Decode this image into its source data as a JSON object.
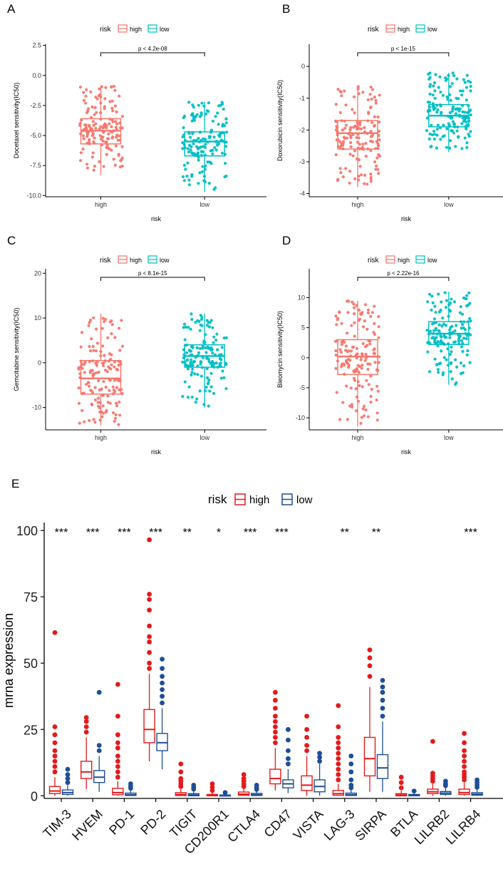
{
  "colors": {
    "high_panel": "#F8766D",
    "low_panel": "#00BFC4",
    "high_e": "#E41A1C",
    "low_e": "#1F4E96",
    "axis": "#000000"
  },
  "chart_data": [
    {
      "panel": "A",
      "type": "boxplot",
      "legend": {
        "title": "risk",
        "items": [
          "high",
          "low"
        ]
      },
      "ylabel": "Docetaxel sensitivity(IC50)",
      "xlabel": "risk",
      "ylim": [
        -10.1,
        2.6
      ],
      "yticks": [
        2.5,
        0.0,
        -2.5,
        -5.0,
        -7.5,
        -10.0
      ],
      "ytick_labels": [
        "2.5",
        "0.0",
        "-2.5",
        "-5.0",
        "-7.5",
        "-10.0"
      ],
      "categories": [
        "high",
        "low"
      ],
      "boxes": [
        {
          "group": "high",
          "min": -8.3,
          "q1": -5.7,
          "median": -4.6,
          "q3": -3.6,
          "max": -0.9
        },
        {
          "group": "low",
          "min": -9.7,
          "q1": -6.7,
          "median": -5.5,
          "q3": -4.7,
          "max": -2.2
        }
      ],
      "pvalue": "p < 4.2e-08"
    },
    {
      "panel": "B",
      "type": "boxplot",
      "legend": {
        "title": "risk",
        "items": [
          "high",
          "low"
        ]
      },
      "ylabel": "Doxorubicin sensitivity(IC50)",
      "xlabel": "risk",
      "ylim": [
        -4.1,
        0.7
      ],
      "yticks": [
        0,
        -1,
        -2,
        -3,
        -4
      ],
      "ytick_labels": [
        "0",
        "-1",
        "-2",
        "-3",
        "-4"
      ],
      "categories": [
        "high",
        "low"
      ],
      "boxes": [
        {
          "group": "high",
          "min": -3.8,
          "q1": -2.6,
          "median": -2.1,
          "q3": -1.7,
          "max": -0.6
        },
        {
          "group": "low",
          "min": -2.7,
          "q1": -1.9,
          "median": -1.55,
          "q3": -1.2,
          "max": -0.2
        }
      ],
      "pvalue": "p < 1e-15"
    },
    {
      "panel": "C",
      "type": "boxplot",
      "legend": {
        "title": "risk",
        "items": [
          "high",
          "low"
        ]
      },
      "ylabel": "Gemcitabine sensitivity(IC50)",
      "xlabel": "risk",
      "ylim": [
        -15,
        21
      ],
      "yticks": [
        20,
        10,
        0,
        -10
      ],
      "ytick_labels": [
        "20",
        "10",
        "0",
        "-10"
      ],
      "categories": [
        "high",
        "low"
      ],
      "boxes": [
        {
          "group": "high",
          "min": -14,
          "q1": -7,
          "median": -3.5,
          "q3": 0.5,
          "max": 11
        },
        {
          "group": "low",
          "min": -10,
          "q1": -1,
          "median": 1.5,
          "q3": 4,
          "max": 11
        }
      ],
      "pvalue": "p < 8.1e-15"
    },
    {
      "panel": "D",
      "type": "boxplot",
      "legend": {
        "title": "risk",
        "items": [
          "high",
          "low"
        ]
      },
      "ylabel": "Bleomycin sensitivity(IC50)",
      "xlabel": "risk",
      "ylim": [
        -12,
        14.8
      ],
      "yticks": [
        10,
        5,
        0,
        -5,
        -10
      ],
      "ytick_labels": [
        "10",
        "5",
        "0",
        "-5",
        "-10"
      ],
      "categories": [
        "high",
        "low"
      ],
      "boxes": [
        {
          "group": "high",
          "min": -11.5,
          "q1": -2.8,
          "median": 0.2,
          "q3": 3.0,
          "max": 9.5
        },
        {
          "group": "low",
          "min": -4.5,
          "q1": 2.2,
          "median": 4.0,
          "q3": 6.0,
          "max": 11
        }
      ],
      "pvalue": "p < 2.22e-16"
    },
    {
      "panel": "E",
      "type": "boxplot",
      "legend": {
        "title": "risk",
        "items": [
          "high",
          "low"
        ]
      },
      "ylabel": "mrna expression",
      "ylim": [
        -1,
        103
      ],
      "yticks": [
        0,
        25,
        50,
        75,
        100
      ],
      "ytick_labels": [
        "0",
        "25",
        "50",
        "75",
        "100"
      ],
      "categories": [
        "TIM-3",
        "HVEM",
        "PD-1",
        "PD-2",
        "TIGIT",
        "CD200R1",
        "CTLA4",
        "CD47",
        "VISTA",
        "LAG-3",
        "SIRPA",
        "BTLA",
        "LILRB2",
        "LILRB4"
      ],
      "significance": [
        "***",
        "***",
        "***",
        "***",
        "**",
        "*",
        "***",
        "***",
        "",
        "**",
        "**",
        "",
        "",
        "***"
      ],
      "high": [
        {
          "min": 0,
          "q1": 0.8,
          "median": 1.8,
          "q3": 3.5,
          "max": 7,
          "outliers": [
            9,
            11,
            13,
            15,
            17,
            20,
            23,
            26,
            61.5
          ]
        },
        {
          "min": 2.5,
          "q1": 6.5,
          "median": 9,
          "q3": 13,
          "max": 22,
          "outliers": [
            24,
            26,
            28,
            29.5
          ]
        },
        {
          "min": 0,
          "q1": 0.4,
          "median": 1.2,
          "q3": 2.8,
          "max": 5.5,
          "outliers": [
            7,
            9,
            11,
            13,
            15,
            18,
            20,
            23,
            30,
            42
          ]
        },
        {
          "min": 13,
          "q1": 20,
          "median": 25,
          "q3": 32.5,
          "max": 46,
          "outliers": [
            48,
            50,
            54,
            58,
            60,
            64,
            70,
            74,
            76,
            96.5
          ]
        },
        {
          "min": 0,
          "q1": 0.1,
          "median": 0.5,
          "q3": 1.2,
          "max": 2.5,
          "outliers": [
            3.5,
            4.5,
            5.5,
            6.5,
            9,
            12
          ]
        },
        {
          "min": 0,
          "q1": 0,
          "median": 0.15,
          "q3": 0.5,
          "max": 1.2,
          "outliers": [
            2,
            3.2,
            4.5
          ]
        },
        {
          "min": 0,
          "q1": 0.2,
          "median": 0.6,
          "q3": 1.4,
          "max": 2.8,
          "outliers": [
            3.5,
            4.5,
            5.5,
            6.5,
            8
          ]
        },
        {
          "min": 2,
          "q1": 4.5,
          "median": 6.5,
          "q3": 10,
          "max": 18,
          "outliers": [
            20,
            22,
            24,
            26,
            28,
            30,
            33,
            36,
            39
          ]
        },
        {
          "min": 0,
          "q1": 2,
          "median": 4,
          "q3": 7.5,
          "max": 15,
          "outliers": [
            17,
            19,
            22,
            25,
            30
          ]
        },
        {
          "min": 0,
          "q1": 0.2,
          "median": 0.8,
          "q3": 2,
          "max": 4.5,
          "outliers": [
            6,
            8,
            10,
            12,
            14,
            16,
            18,
            20,
            22,
            26,
            34
          ]
        },
        {
          "min": 1.5,
          "q1": 7.5,
          "median": 14,
          "q3": 22,
          "max": 41,
          "outliers": [
            45,
            49,
            52,
            55
          ]
        },
        {
          "min": 0,
          "q1": 0,
          "median": 0.3,
          "q3": 0.8,
          "max": 2,
          "outliers": [
            3,
            5,
            7
          ]
        },
        {
          "min": 0,
          "q1": 0.8,
          "median": 1.5,
          "q3": 2.5,
          "max": 4.5,
          "outliers": [
            5.5,
            6.5,
            7.5,
            8.5,
            20.5
          ]
        },
        {
          "min": 0,
          "q1": 0.5,
          "median": 1.2,
          "q3": 2.5,
          "max": 5,
          "outliers": [
            6,
            7,
            8,
            9,
            11,
            13,
            15,
            17,
            20,
            23.5
          ]
        }
      ],
      "low": [
        {
          "min": 0,
          "q1": 0.5,
          "median": 1.2,
          "q3": 2.2,
          "max": 4,
          "outliers": [
            5,
            6.5,
            8,
            10
          ]
        },
        {
          "min": 1.5,
          "q1": 5,
          "median": 7,
          "q3": 9.5,
          "max": 15,
          "outliers": [
            17,
            19,
            39
          ]
        },
        {
          "min": 0,
          "q1": 0.1,
          "median": 0.4,
          "q3": 1,
          "max": 2,
          "outliers": [
            2.8,
            3.5,
            4.5
          ]
        },
        {
          "min": 10,
          "q1": 17,
          "median": 20,
          "q3": 23.5,
          "max": 33,
          "outliers": [
            35,
            37.5,
            40,
            42.5,
            45,
            48,
            51.5
          ]
        },
        {
          "min": 0,
          "q1": 0,
          "median": 0.3,
          "q3": 0.8,
          "max": 1.8,
          "outliers": [
            2.5,
            3.2,
            4
          ]
        },
        {
          "min": 0,
          "q1": 0,
          "median": 0.1,
          "q3": 0.3,
          "max": 0.8,
          "outliers": [
            1.2
          ]
        },
        {
          "min": 0,
          "q1": 0.1,
          "median": 0.4,
          "q3": 0.9,
          "max": 1.8,
          "outliers": [
            2.4,
            3,
            4
          ]
        },
        {
          "min": 1,
          "q1": 3,
          "median": 4.5,
          "q3": 6,
          "max": 10,
          "outliers": [
            12,
            14,
            17,
            21,
            25
          ]
        },
        {
          "min": 0,
          "q1": 1.5,
          "median": 3.5,
          "q3": 6,
          "max": 12,
          "outliers": [
            13,
            14.5,
            16
          ]
        },
        {
          "min": 0,
          "q1": 0.1,
          "median": 0.4,
          "q3": 1,
          "max": 2.2,
          "outliers": [
            3,
            4,
            6,
            9,
            12,
            15
          ]
        },
        {
          "min": 1.5,
          "q1": 6.5,
          "median": 10.5,
          "q3": 15.5,
          "max": 28,
          "outliers": [
            30,
            33,
            36,
            39,
            41,
            43.5
          ]
        },
        {
          "min": 0,
          "q1": 0,
          "median": 0.2,
          "q3": 0.5,
          "max": 1.2,
          "outliers": [
            1.8
          ]
        },
        {
          "min": 0,
          "q1": 0.5,
          "median": 1,
          "q3": 1.6,
          "max": 3,
          "outliers": [
            3.8,
            4.5,
            5.5
          ]
        },
        {
          "min": 0,
          "q1": 0.2,
          "median": 0.6,
          "q3": 1.2,
          "max": 2.5,
          "outliers": [
            3.2,
            4,
            5,
            6
          ]
        }
      ]
    }
  ]
}
